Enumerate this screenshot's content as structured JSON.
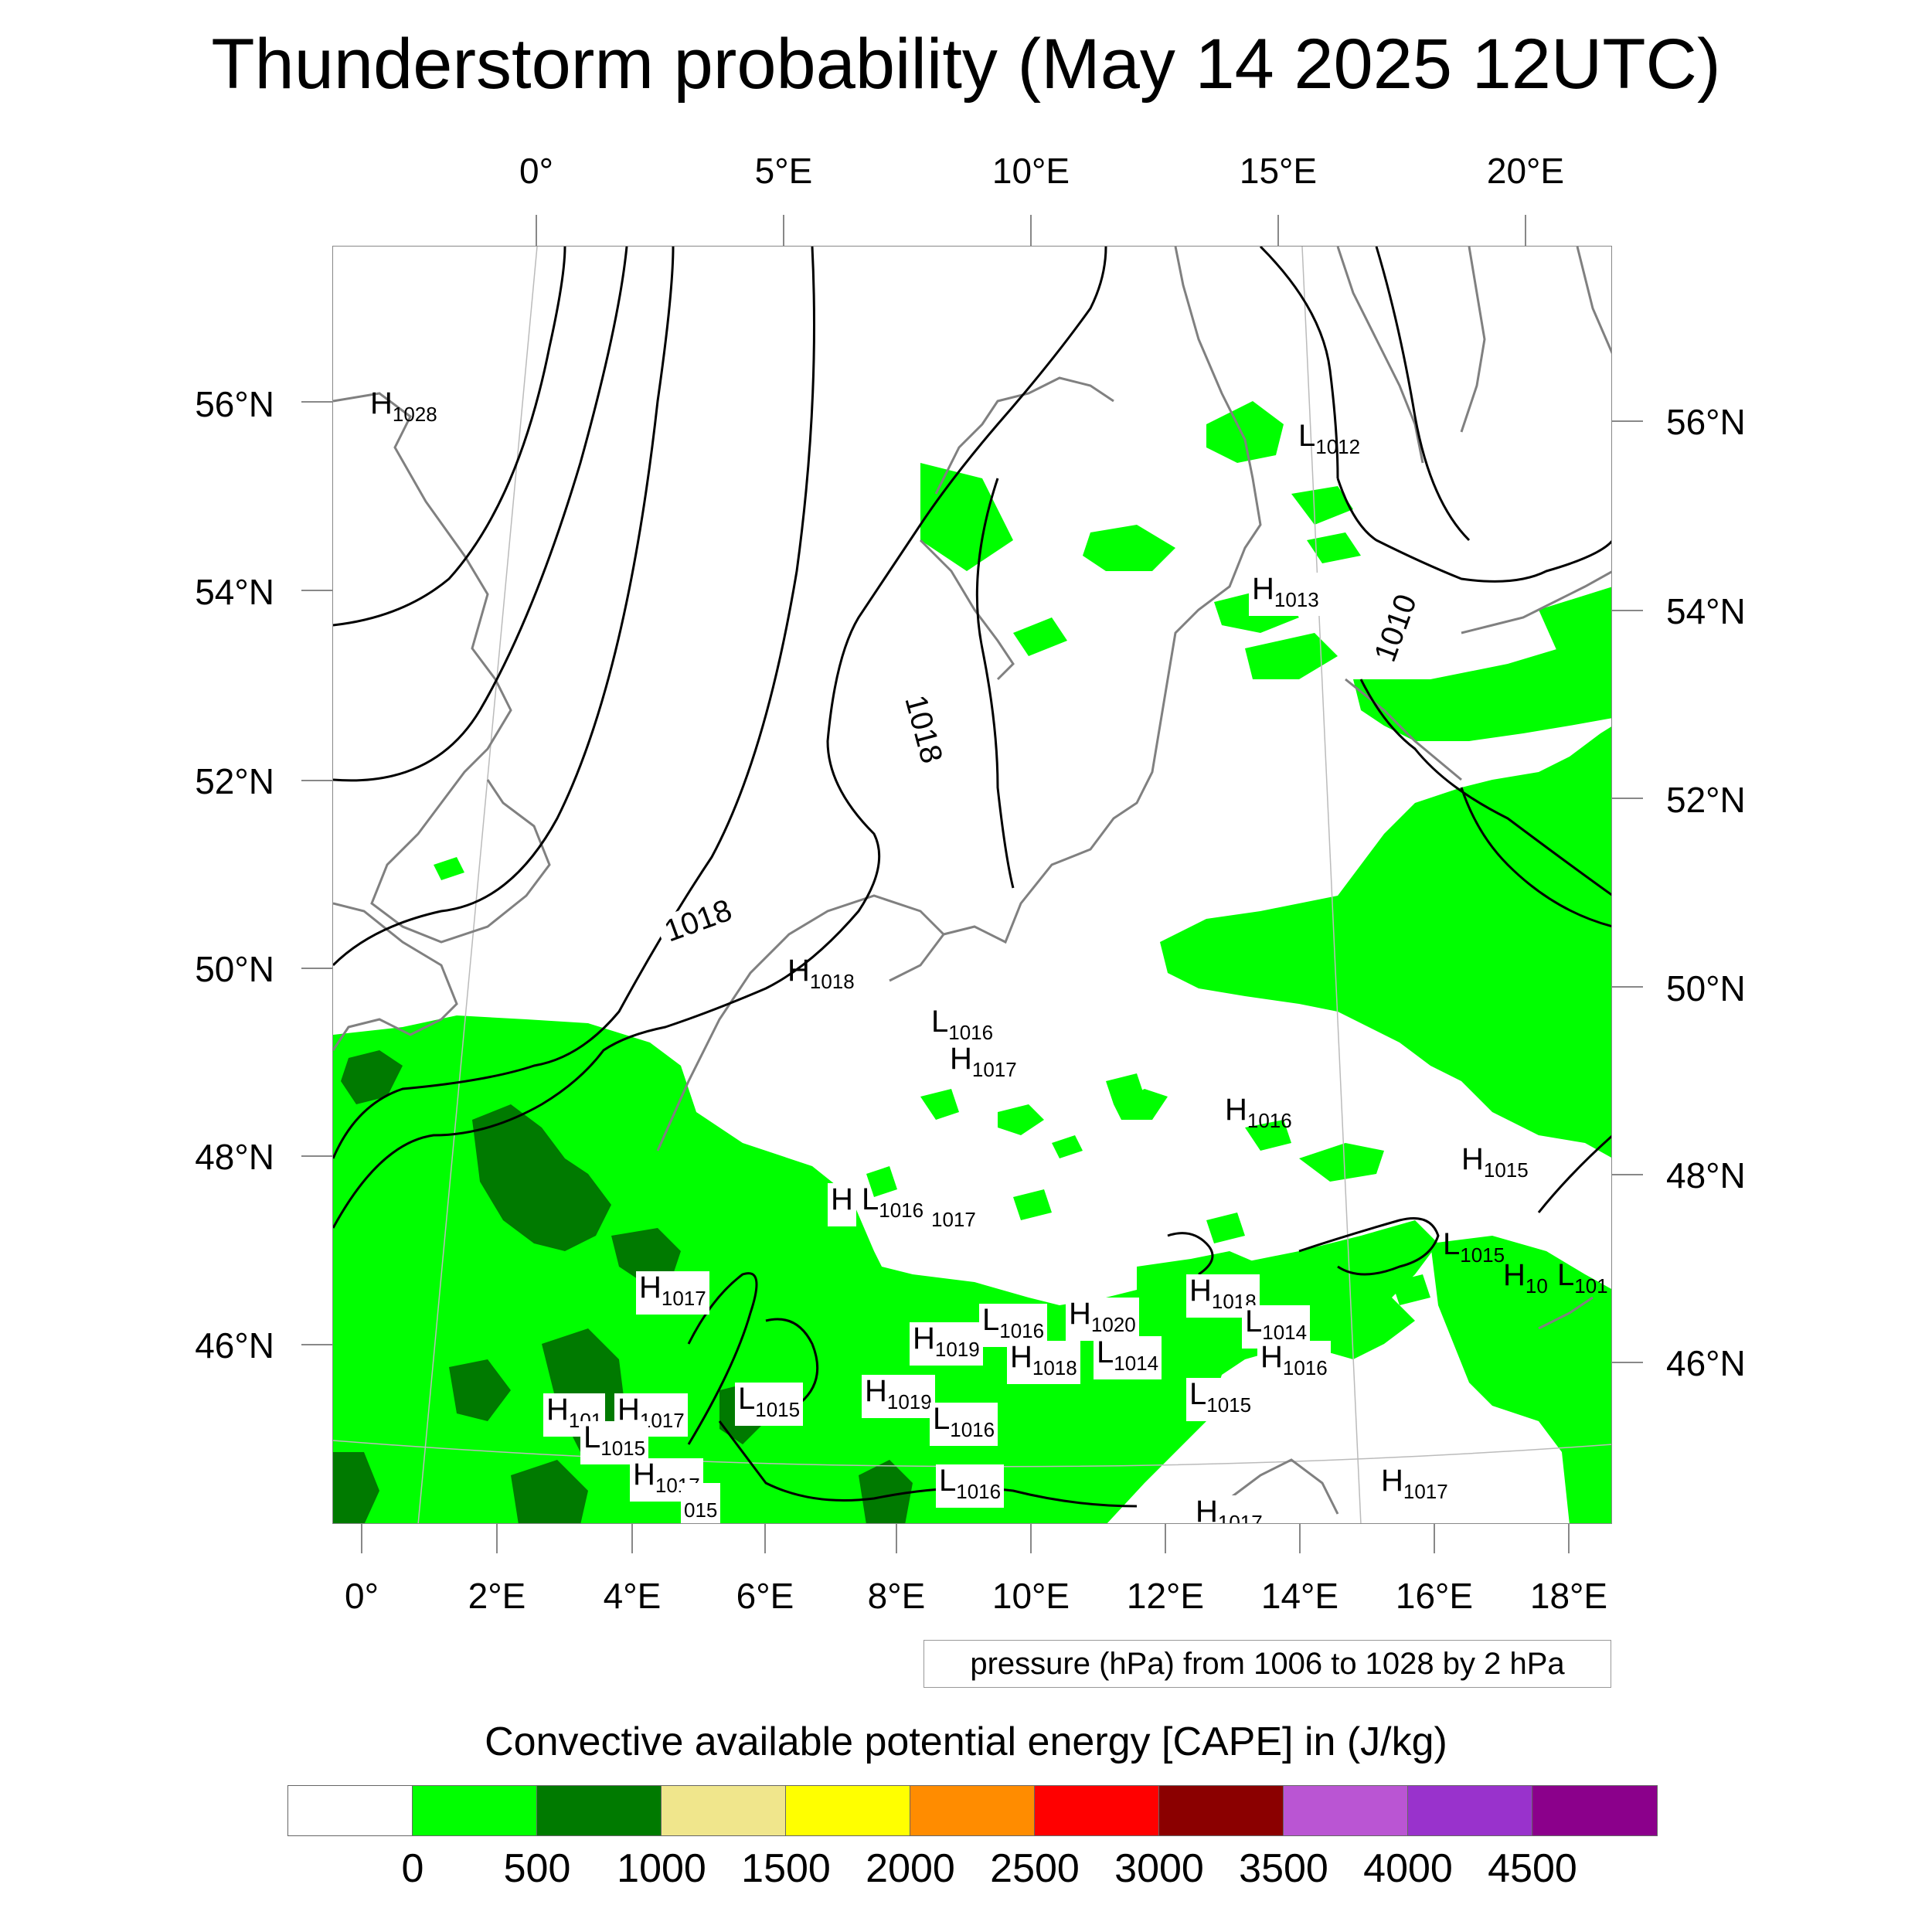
{
  "title": "Thunderstorm probability (May 14 2025 12UTC)",
  "top_lon_labels": [
    "0°",
    "5°E",
    "10°E",
    "15°E",
    "20°E"
  ],
  "bottom_lon_labels": [
    "0°",
    "2°E",
    "4°E",
    "6°E",
    "8°E",
    "10°E",
    "12°E",
    "14°E",
    "16°E",
    "18°E"
  ],
  "left_lat_labels": [
    "56°N",
    "54°N",
    "52°N",
    "50°N",
    "48°N",
    "46°N"
  ],
  "right_lat_labels": [
    "56°N",
    "54°N",
    "52°N",
    "50°N",
    "48°N",
    "46°N"
  ],
  "contour_labels": [
    "1018",
    "1018",
    "1010"
  ],
  "pressure_systems": [
    {
      "kind": "H",
      "value": "1028"
    },
    {
      "kind": "L",
      "value": "1012"
    },
    {
      "kind": "H",
      "value": "1013"
    },
    {
      "kind": "H",
      "value": "1018"
    },
    {
      "kind": "L",
      "value": "1016"
    },
    {
      "kind": "H",
      "value": "1017"
    },
    {
      "kind": "H",
      "value": "1016"
    },
    {
      "kind": "H",
      "value": "1015"
    },
    {
      "kind": "H",
      "value": ""
    },
    {
      "kind": "L",
      "value": "1016"
    },
    {
      "kind": "",
      "value": "1017"
    },
    {
      "kind": "L",
      "value": "1015"
    },
    {
      "kind": "H",
      "value": "10"
    },
    {
      "kind": "L",
      "value": "101"
    },
    {
      "kind": "H",
      "value": "1017"
    },
    {
      "kind": "H",
      "value": "1018"
    },
    {
      "kind": "L",
      "value": "1014"
    },
    {
      "kind": "H",
      "value": "1016"
    },
    {
      "kind": "H",
      "value": "1020"
    },
    {
      "kind": "L",
      "value": "1016"
    },
    {
      "kind": "H",
      "value": "1019"
    },
    {
      "kind": "H",
      "value": "1018"
    },
    {
      "kind": "L",
      "value": "1014"
    },
    {
      "kind": "L",
      "value": "1015"
    },
    {
      "kind": "H",
      "value": "1019"
    },
    {
      "kind": "L",
      "value": "1016"
    },
    {
      "kind": "L",
      "value": "1015"
    },
    {
      "kind": "H",
      "value": "101"
    },
    {
      "kind": "H",
      "value": "1017"
    },
    {
      "kind": "L",
      "value": "1015"
    },
    {
      "kind": "H",
      "value": "1017"
    },
    {
      "kind": "",
      "value": "015"
    },
    {
      "kind": "L",
      "value": "1016"
    },
    {
      "kind": "H",
      "value": "1017"
    },
    {
      "kind": "H",
      "value": "1017"
    }
  ],
  "pressure_note": "pressure (hPa) from 1006 to 1028 by 2 hPa",
  "colorbar": {
    "title": "Convective available potential energy [CAPE] in (J/kg)",
    "colors": [
      "#ffffff",
      "#00ff00",
      "#007a00",
      "#f0e68c",
      "#ffff00",
      "#ff8c00",
      "#ff0000",
      "#8b0000",
      "#ba55d3",
      "#9932cc",
      "#8b008b"
    ],
    "ticks": [
      "0",
      "500",
      "1000",
      "1500",
      "2000",
      "2500",
      "3000",
      "3500",
      "4000",
      "4500"
    ]
  }
}
